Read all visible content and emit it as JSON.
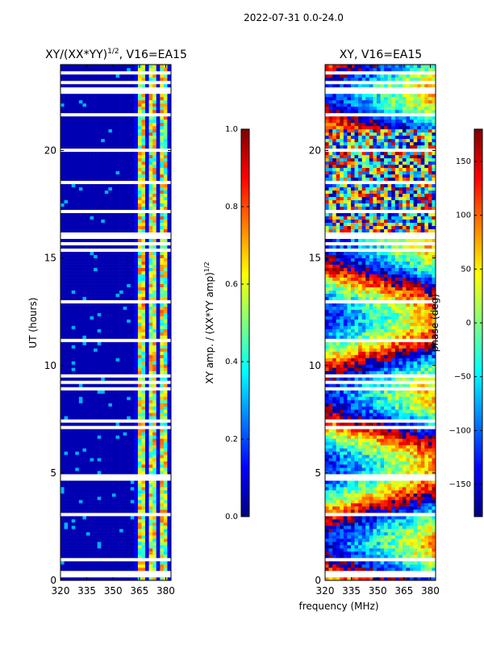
{
  "suptitle": "2022-07-31 0.0-24.0",
  "colors": {
    "jet": [
      "#00007f",
      "#0000ff",
      "#007fff",
      "#00ffff",
      "#7fff7f",
      "#ffff00",
      "#ff7f00",
      "#ff0000",
      "#7f0000"
    ],
    "gap": "#ffffff"
  },
  "chart_data": [
    {
      "type": "heatmap",
      "title": "XY/(XX*YY)",
      "title_exponent": "1/2",
      "title_suffix": ", V16=EA15",
      "xlabel": "",
      "ylabel": "UT (hours)",
      "xlim": [
        320,
        383
      ],
      "ylim": [
        0,
        24
      ],
      "xticks": [
        "320",
        "335",
        "350",
        "365",
        "380"
      ],
      "xtick_values": [
        320,
        335,
        350,
        365,
        380
      ],
      "yticks": [
        "0",
        "5",
        "10",
        "15",
        "20"
      ],
      "ytick_values": [
        0,
        5,
        10,
        15,
        20
      ],
      "colorbar": {
        "label": "XY amp. / (XX*YY amp)",
        "label_exponent": "1/2",
        "range": [
          0.0,
          1.0
        ],
        "ticks": [
          "0.0",
          "0.2",
          "0.4",
          "0.6",
          "0.8",
          "1.0"
        ],
        "tick_values": [
          0.0,
          0.2,
          0.4,
          0.6,
          0.8,
          1.0
        ]
      },
      "high_amplitude_band_MHz": [
        360,
        383
      ],
      "background_value": 0.05
    },
    {
      "type": "heatmap",
      "title": "XY, V16=EA15",
      "xlabel": "frequency (MHz)",
      "ylabel": "",
      "xlim": [
        320,
        383
      ],
      "ylim": [
        0,
        24
      ],
      "xticks": [
        "320",
        "335",
        "350",
        "365",
        "380"
      ],
      "xtick_values": [
        320,
        335,
        350,
        365,
        380
      ],
      "yticks": [
        "0",
        "5",
        "10",
        "15",
        "20"
      ],
      "ytick_values": [
        0,
        5,
        10,
        15,
        20
      ],
      "colorbar": {
        "label": "phase (deg)",
        "range": [
          -180,
          180
        ],
        "ticks": [
          "150",
          "100",
          "50",
          "0",
          "−50",
          "−100",
          "−150"
        ],
        "tick_values": [
          150,
          100,
          50,
          0,
          -50,
          -100,
          -150
        ]
      },
      "noisy_phase_interval_hours": [
        16.0,
        21.0
      ]
    }
  ]
}
